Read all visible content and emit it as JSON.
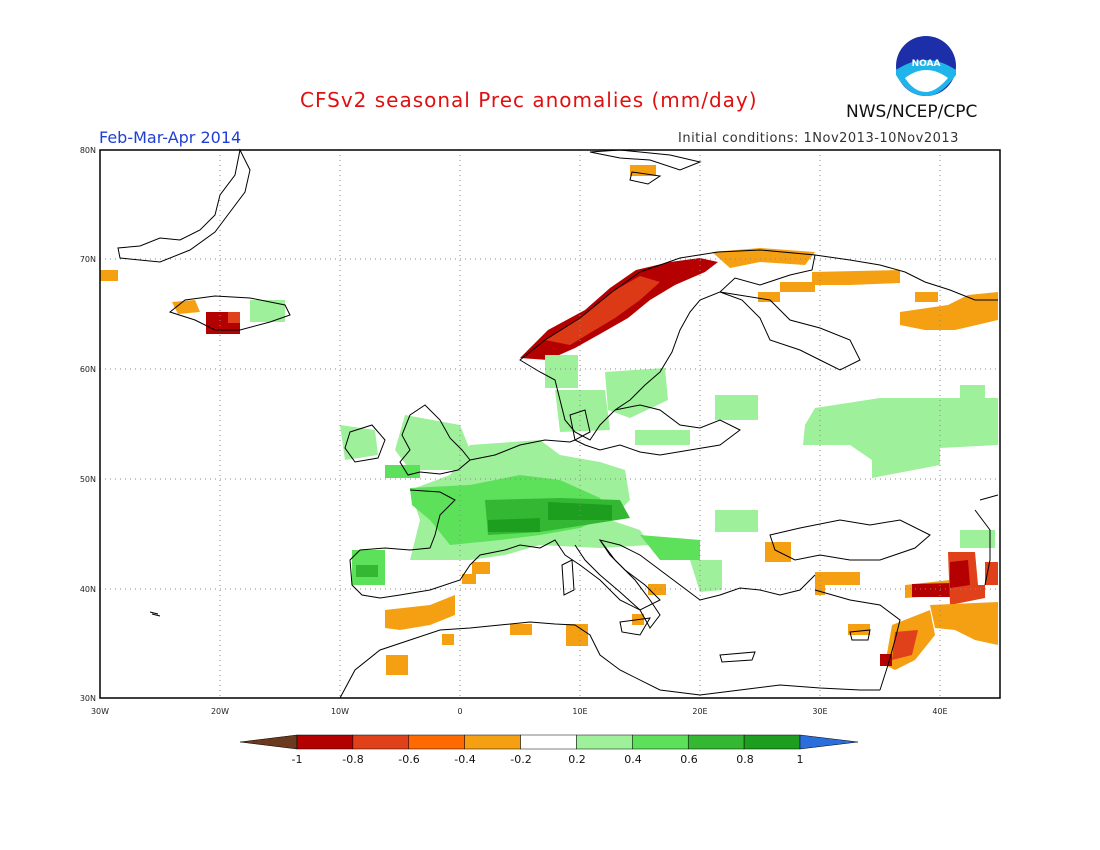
{
  "header": {
    "title": "CFSv2 seasonal Prec anomalies (mm/day)",
    "organization": "NWS/NCEP/CPC",
    "logo_text": "NOAA",
    "season": "Feb-Mar-Apr 2014",
    "initial_conditions": "Initial conditions: 1Nov2013-10Nov2013"
  },
  "map": {
    "lon_range": [
      -30,
      45
    ],
    "lat_range": [
      30,
      80
    ],
    "lat_labels": [
      "30N",
      "40N",
      "50N",
      "60N",
      "70N",
      "80N"
    ],
    "lon_labels": [
      "30W",
      "20W",
      "10W",
      "0",
      "10E",
      "20E",
      "30E",
      "40E"
    ]
  },
  "colorbar": {
    "labels": [
      "-1",
      "-0.8",
      "-0.6",
      "-0.4",
      "-0.2",
      "0.2",
      "0.4",
      "0.6",
      "0.8",
      "1"
    ],
    "colors": [
      "#b40000",
      "#e0401a",
      "#ff6a00",
      "#f4a012",
      "#ffffff",
      "#9ef09a",
      "#5de05a",
      "#34b834",
      "#1e9e1e"
    ],
    "low_color": "#6b3a1e",
    "high_color": "#2a6edc"
  },
  "chart_data": {
    "type": "heatmap",
    "variable": "Prec anomalies (mm/day)",
    "regions": [
      {
        "lon": [
          13,
          24
        ],
        "lat": [
          66,
          71
        ],
        "color": "#b40000"
      },
      {
        "lon": [
          5,
          13
        ],
        "lat": [
          60,
          65
        ],
        "color": "#e0401a"
      },
      {
        "lon": [
          20,
          30
        ],
        "lat": [
          69,
          71
        ],
        "color": "#f4a012"
      },
      {
        "lon": [
          -20.5,
          -18.5
        ],
        "lat": [
          63.5,
          65.5
        ],
        "color": "#b40000"
      },
      {
        "lon": [
          -3,
          10
        ],
        "lat": [
          45,
          49
        ],
        "color": "#5de05a"
      },
      {
        "lon": [
          3,
          14
        ],
        "lat": [
          45.5,
          47.5
        ],
        "color": "#34b834"
      },
      {
        "lon": [
          30,
          44
        ],
        "lat": [
          52,
          58
        ],
        "color": "#9ef09a"
      },
      {
        "lon": [
          37,
          42
        ],
        "lat": [
          39,
          42
        ],
        "color": "#b40000"
      },
      {
        "lon": [
          36,
          45
        ],
        "lat": [
          34,
          40
        ],
        "color": "#f4a012"
      },
      {
        "lon": [
          -9,
          -7
        ],
        "lat": [
          40,
          43
        ],
        "color": "#34b834"
      }
    ]
  }
}
